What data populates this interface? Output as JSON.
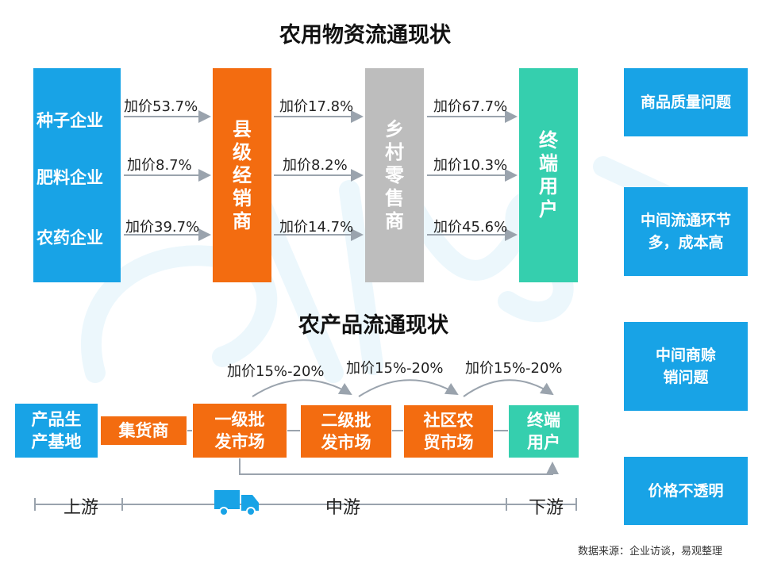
{
  "colors": {
    "blue": "#18a3e6",
    "orange": "#f36c10",
    "gray": "#bdbdbd",
    "teal": "#35cfae",
    "arrow": "#9aa3ad"
  },
  "top": {
    "title": "农用物资流通现状",
    "sources": [
      "种子企业",
      "肥料企业",
      "农药企业"
    ],
    "county": "县级经销商",
    "village": "乡村零售商",
    "end_user": "终端用户",
    "markups_col1": [
      "加价53.7%",
      "加价8.7%",
      "加价39.7%"
    ],
    "markups_col2": [
      "加价17.8%",
      "加价8.2%",
      "加价14.7%"
    ],
    "markups_col3": [
      "加价67.7%",
      "加价10.3%",
      "加价45.6%"
    ]
  },
  "bottom": {
    "title": "农产品流通现状",
    "nodes": [
      "产品生产基地",
      "集货商",
      "一级批发市场",
      "二级批发市场",
      "社区农贸市场",
      "终端用户"
    ],
    "markups": [
      "加价15%-20%",
      "加价15%-20%",
      "加价15%-20%"
    ],
    "timeline": {
      "upstream": "上游",
      "midstream": "中游",
      "downstream": "下游",
      "icon": "truck-icon"
    }
  },
  "issues": [
    "商品质量问题",
    "中间流通环节多，成本高",
    "中间商赊销问题",
    "价格不透明"
  ],
  "footer": {
    "source_note": "数据来源：企业访谈，易观整理"
  }
}
